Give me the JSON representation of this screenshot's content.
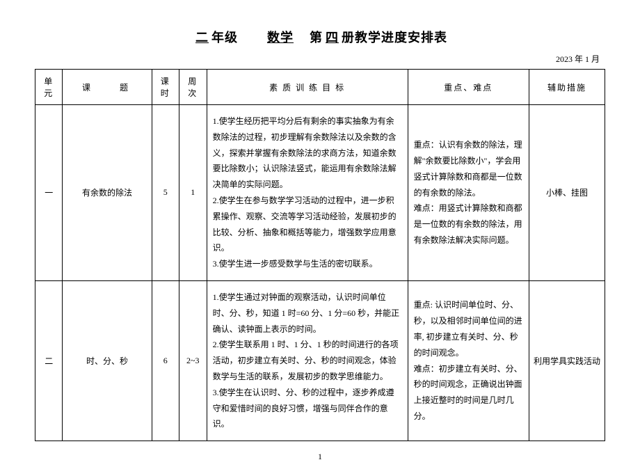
{
  "title": {
    "grade_label": "二",
    "grade_suffix": "年级",
    "subject": "数学",
    "volume_prefix": "第",
    "volume": "四",
    "volume_suffix": "册教学进度安排表"
  },
  "date": "2023 年 1 月",
  "headers": {
    "unit": "单元",
    "topic": "课　　题",
    "hours": "课时",
    "weeks": "周次",
    "goals": "素 质 训 练 目 标",
    "focus": "重点、难点",
    "aid": "辅助措施"
  },
  "rows": [
    {
      "unit": "一",
      "topic": "有余数的除法",
      "hours": "5",
      "weeks": "1",
      "goals": "1.使学生经历把平均分后有剩余的事实抽象为有余数除法的过程，初步理解有余数除法以及余数的含义，探索并掌握有余数除法的求商方法，知道余数要比除数小；认识除法竖式，能运用有余数除法解决简单的实际问题。\n2.使学生在参与数学学习活动的过程中，进一步积累操作、观察、交流等学习活动经验，发展初步的比较、分析、抽象和概括等能力，增强数学应用意识。\n3.使学生进一步感受数学与生活的密切联系。",
      "focus": "重点：认识有余数的除法，理解\"余数要比除数小\"，学会用竖式计算除数和商都是一位数的有余数的除法。\n难点：用竖式计算除数和商都是一位数的有余数的除法，用有余数除法解决实际问题。",
      "aid": "小棒、挂图"
    },
    {
      "unit": "二",
      "topic": "时、分、秒",
      "hours": "6",
      "weeks": "2~3",
      "goals": "1.使学生通过对钟面的观察活动，认识时间单位时、分、秒，知道 1 时=60 分、1 分=60 秒，并能正确认、读钟面上表示的时间。\n2.使学生联系用 1 时、1 分、1 秒的时间进行的各项活动，初步建立有关时、分、秒的时间观念，体验数学与生活的联系，发展初步的数学思维能力。\n3.使学生在认识时、分、秒的过程中，逐步养成遵守和爱惜时间的良好习惯，增强与同伴合作的意识。",
      "focus": "重点: 认识时间单位时、分、秒，以及相邻时间单位间的进率, 初步建立有关时、分、秒的时间观念。\n难点：初步建立有关时、分、秒的时间观念，正确说出钟面上接近整时的时间是几时几分。",
      "aid": "利用学具实践活动"
    }
  ],
  "page_number": "1"
}
